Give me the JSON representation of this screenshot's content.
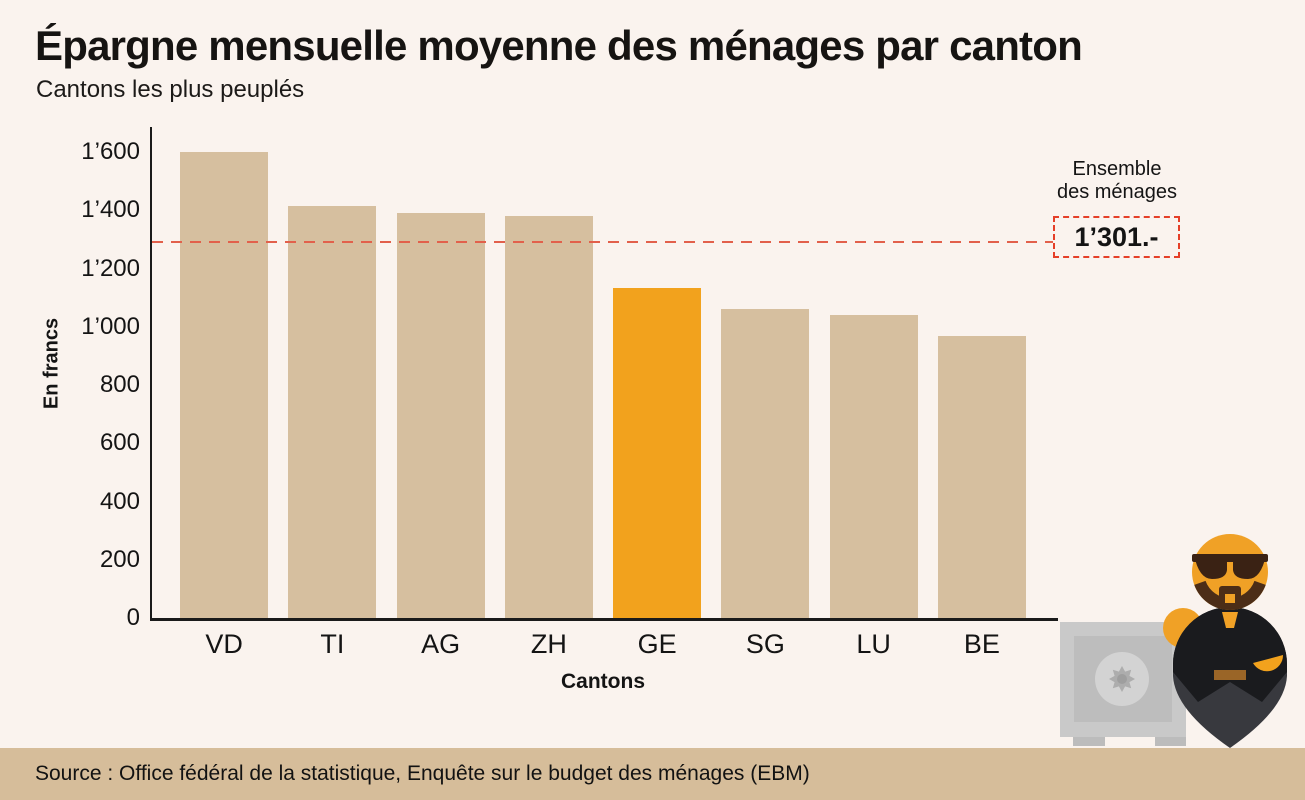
{
  "header": {
    "title": "Épargne mensuelle moyenne des ménages par canton",
    "subtitle": "Cantons les plus peuplés"
  },
  "chart_data": {
    "type": "bar",
    "title": "Épargne mensuelle moyenne des ménages par canton",
    "subtitle": "Cantons les plus peuplés",
    "categories": [
      "VD",
      "TI",
      "AG",
      "ZH",
      "GE",
      "SG",
      "LU",
      "BE"
    ],
    "values": [
      1610,
      1425,
      1400,
      1390,
      1145,
      1070,
      1050,
      980
    ],
    "highlight_category": "GE",
    "xlabel": "Cantons",
    "ylabel": "En francs",
    "ylim": [
      0,
      1600
    ],
    "ytick_values": [
      0,
      200,
      400,
      600,
      800,
      1000,
      1200,
      1400,
      1600
    ],
    "ytick_labels": [
      "0",
      "200",
      "400",
      "600",
      "800",
      "1’000",
      "1’200",
      "1’400",
      "1’600"
    ],
    "grid": false,
    "legend": null,
    "reference_line": {
      "value": 1301,
      "label_line1": "Ensemble",
      "label_line2": "des ménages",
      "value_label": "1’301.-"
    }
  },
  "colors": {
    "background": "#faf3ee",
    "bar": "#d6bf9f",
    "bar_highlight": "#f2a21d",
    "axis": "#1a1a1a",
    "reference_line": "#e2604b",
    "reference_box_border": "#e53f28",
    "source_band": "#d6bd9a"
  },
  "footer": {
    "source": "Source : Office fédéral de la statistique, Enquête sur le budget des ménages (EBM)"
  },
  "illustration": {
    "icons": [
      "safe-icon",
      "hero-character-icon"
    ]
  }
}
